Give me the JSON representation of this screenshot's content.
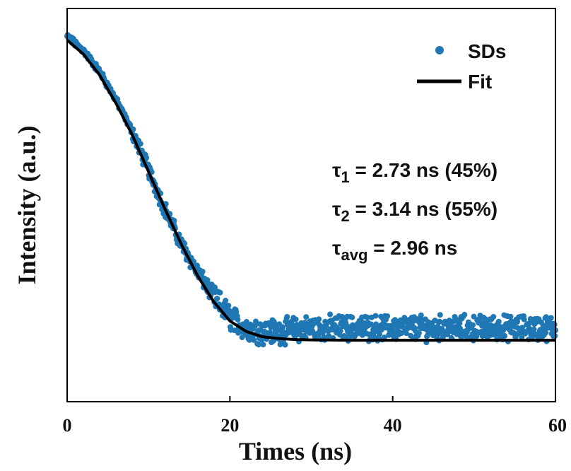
{
  "chart_data": {
    "type": "scatter",
    "xlabel": "Times (ns)",
    "ylabel": "Intensity (a.u.)",
    "xlim": [
      0,
      60
    ],
    "ylim": [
      0,
      1.12
    ],
    "x_ticks": [
      "0",
      "20",
      "40",
      "60"
    ],
    "y_ticks_shown": false,
    "legend": {
      "placement": "top-right"
    },
    "colors": {
      "data": "#1f77b4",
      "fit": "#000000"
    },
    "series": [
      {
        "name": "SDs",
        "kind": "scatter",
        "description_points": [
          [
            0,
            1.04
          ],
          [
            2,
            1.0
          ],
          [
            4,
            0.94
          ],
          [
            6,
            0.86
          ],
          [
            8,
            0.77
          ],
          [
            10,
            0.66
          ],
          [
            12,
            0.55
          ],
          [
            14,
            0.45
          ],
          [
            16,
            0.37
          ],
          [
            18,
            0.3
          ],
          [
            20,
            0.24
          ],
          [
            22,
            0.21
          ],
          [
            24,
            0.2
          ],
          [
            26,
            0.2
          ],
          [
            30,
            0.21
          ],
          [
            35,
            0.21
          ],
          [
            40,
            0.21
          ],
          [
            45,
            0.21
          ],
          [
            50,
            0.21
          ],
          [
            55,
            0.21
          ],
          [
            60,
            0.21
          ]
        ],
        "noise": 0.028
      },
      {
        "name": "Fit",
        "kind": "line",
        "points": [
          [
            0,
            1.03
          ],
          [
            2,
            0.99
          ],
          [
            4,
            0.93
          ],
          [
            6,
            0.85
          ],
          [
            8,
            0.76
          ],
          [
            10,
            0.655
          ],
          [
            12,
            0.55
          ],
          [
            14,
            0.45
          ],
          [
            16,
            0.36
          ],
          [
            18,
            0.285
          ],
          [
            20,
            0.23
          ],
          [
            22,
            0.2
          ],
          [
            24,
            0.185
          ],
          [
            26,
            0.18
          ],
          [
            28,
            0.177
          ],
          [
            30,
            0.176
          ],
          [
            35,
            0.175
          ],
          [
            40,
            0.175
          ],
          [
            50,
            0.175
          ],
          [
            60,
            0.175
          ]
        ]
      }
    ],
    "annotations": {
      "tau1": {
        "symbol": "τ",
        "sub": "1",
        "text": " = 2.73 ns (45%)"
      },
      "tau2": {
        "symbol": "τ",
        "sub": "2",
        "text": " = 3.14 ns (55%)"
      },
      "tauavg": {
        "symbol": "τ",
        "sub": "avg",
        "text": " = 2.96 ns"
      }
    }
  }
}
